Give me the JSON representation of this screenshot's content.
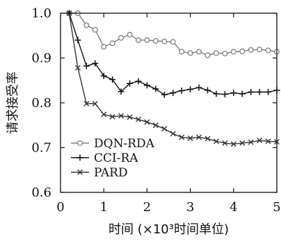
{
  "chart_data": {
    "type": "line",
    "title": "",
    "xlabel": "时间 (×10³时间单位)",
    "ylabel": "请求接受率",
    "xlim": [
      0,
      5
    ],
    "ylim": [
      0.6,
      1.0
    ],
    "xticks": [
      "0",
      "1",
      "2",
      "3",
      "4",
      "5"
    ],
    "yticks": [
      "0.6",
      "0.7",
      "0.8",
      "0.9",
      "1.0"
    ],
    "legend_position": "bottom-left",
    "grid": false,
    "series": [
      {
        "name": "DQN-RDA",
        "color": "#808080",
        "marker": "circle",
        "x": [
          0.2,
          0.4,
          0.6,
          0.8,
          1.0,
          1.2,
          1.4,
          1.6,
          1.8,
          2.0,
          2.2,
          2.4,
          2.6,
          2.8,
          3.0,
          3.2,
          3.4,
          3.6,
          3.8,
          4.0,
          4.2,
          4.4,
          4.6,
          4.8,
          5.0
        ],
        "values": [
          1.0,
          1.0,
          0.973,
          0.963,
          0.925,
          0.933,
          0.945,
          0.952,
          0.94,
          0.94,
          0.938,
          0.937,
          0.936,
          0.914,
          0.911,
          0.914,
          0.906,
          0.911,
          0.91,
          0.914,
          0.915,
          0.918,
          0.919,
          0.917,
          0.914
        ]
      },
      {
        "name": "CCI-RA",
        "color": "#111111",
        "marker": "plus",
        "x": [
          0.2,
          0.4,
          0.6,
          0.8,
          1.0,
          1.2,
          1.4,
          1.6,
          1.8,
          2.0,
          2.2,
          2.4,
          2.6,
          2.8,
          3.0,
          3.2,
          3.4,
          3.6,
          3.8,
          4.0,
          4.2,
          4.4,
          4.6,
          4.8,
          5.0
        ],
        "values": [
          1.0,
          0.94,
          0.882,
          0.888,
          0.86,
          0.852,
          0.825,
          0.843,
          0.848,
          0.839,
          0.831,
          0.818,
          0.822,
          0.827,
          0.83,
          0.834,
          0.828,
          0.82,
          0.819,
          0.822,
          0.82,
          0.824,
          0.824,
          0.824,
          0.828
        ]
      },
      {
        "name": "PARD",
        "color": "#333333",
        "marker": "x",
        "x": [
          0.2,
          0.4,
          0.6,
          0.8,
          1.0,
          1.2,
          1.4,
          1.6,
          1.8,
          2.0,
          2.2,
          2.4,
          2.6,
          2.8,
          3.0,
          3.2,
          3.4,
          3.6,
          3.8,
          4.0,
          4.2,
          4.4,
          4.6,
          4.8,
          5.0
        ],
        "values": [
          1.0,
          0.878,
          0.798,
          0.798,
          0.774,
          0.769,
          0.771,
          0.768,
          0.763,
          0.757,
          0.75,
          0.742,
          0.731,
          0.723,
          0.721,
          0.723,
          0.72,
          0.714,
          0.71,
          0.708,
          0.71,
          0.712,
          0.716,
          0.714,
          0.713
        ]
      }
    ]
  }
}
